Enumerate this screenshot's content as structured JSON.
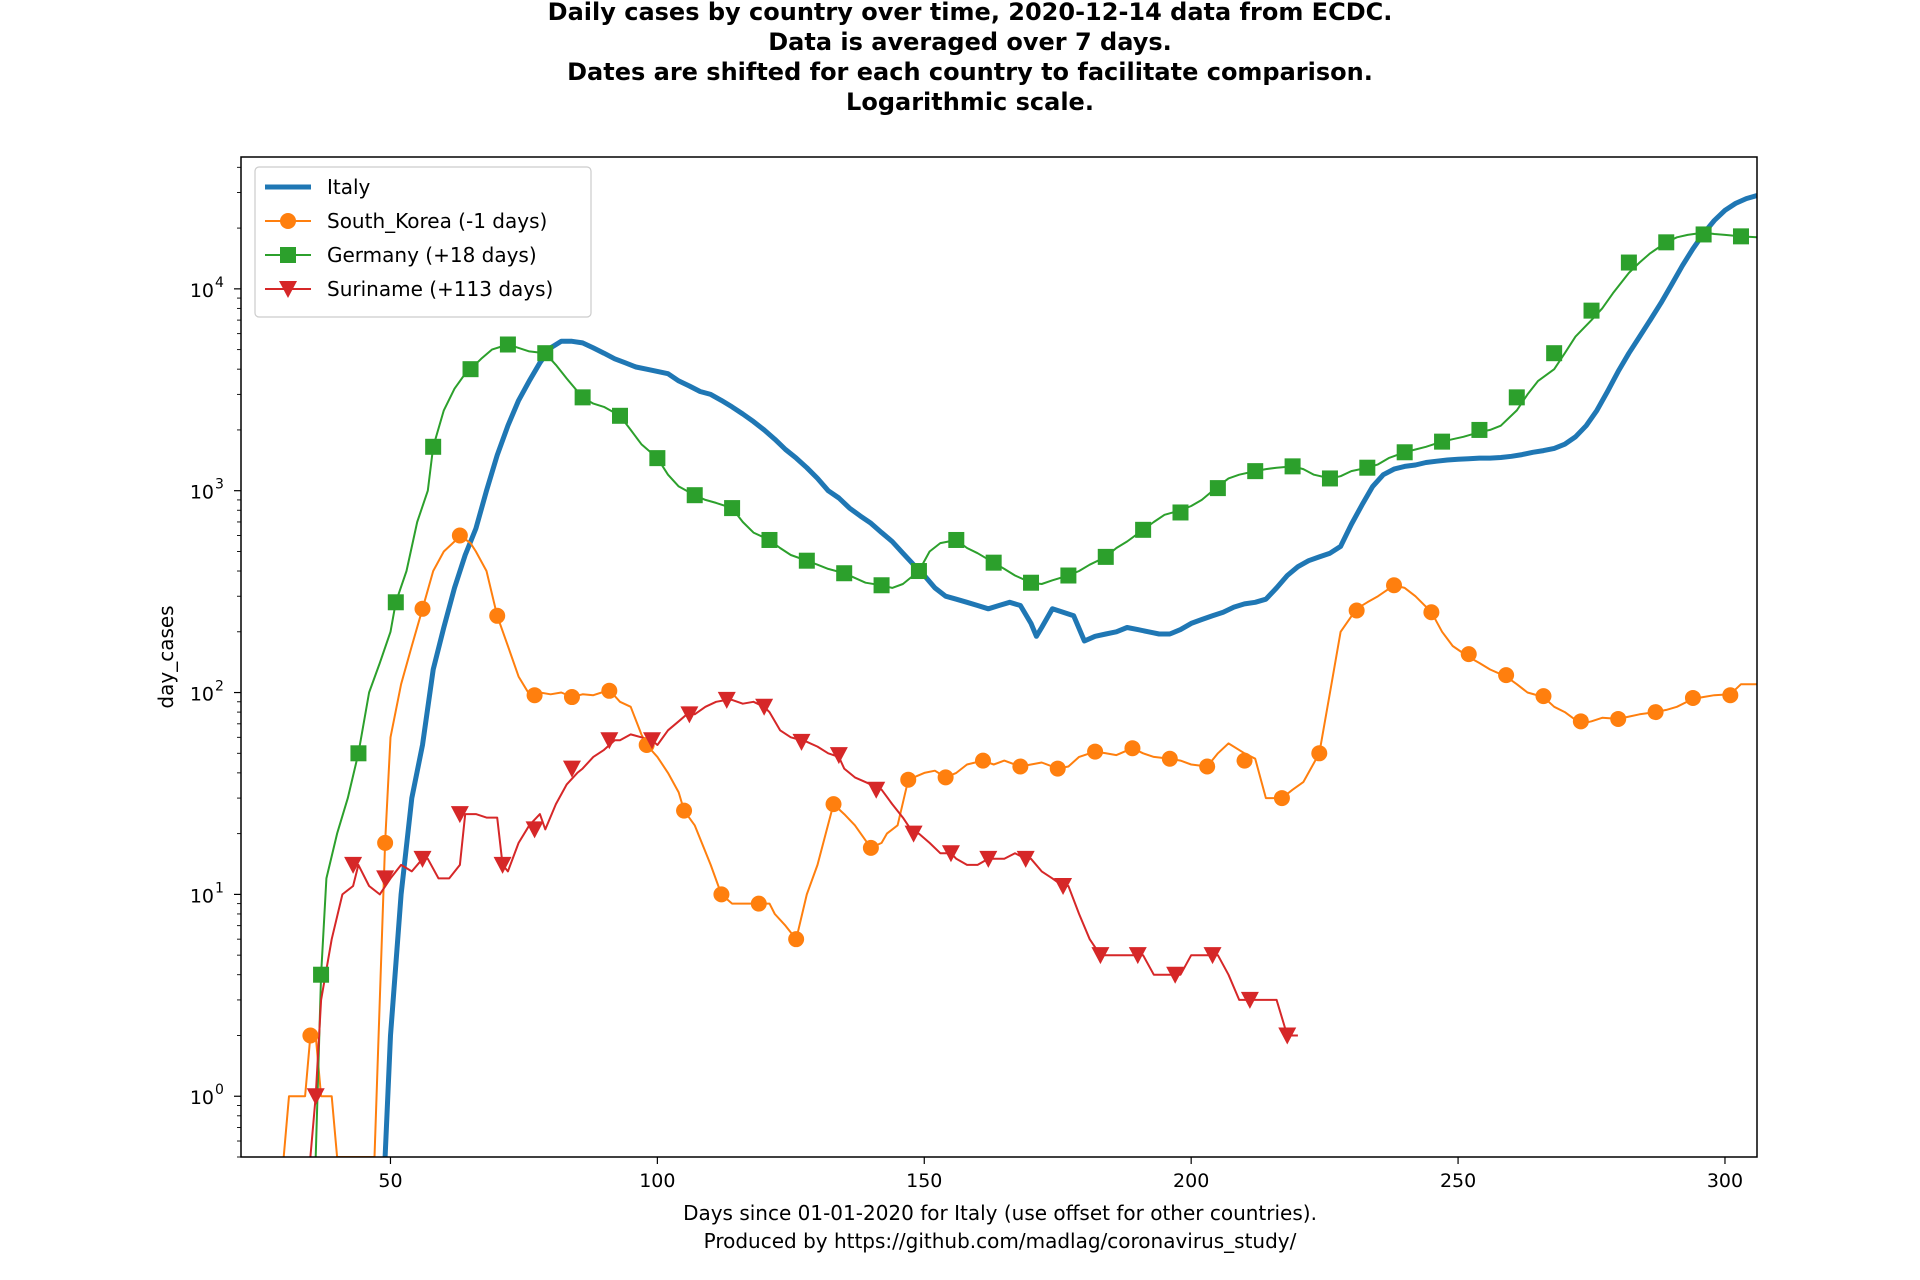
{
  "chart_data": {
    "type": "line",
    "title_lines": [
      "Daily cases by country over time, 2020-12-14 data from ECDC.",
      "Data is averaged over 7 days.",
      "Dates are shifted for each country to facilitate comparison.",
      "Logarithmic scale."
    ],
    "xlabel": "Days since 01-01-2020 for Italy (use offset for other countries).",
    "xlabel2": "Produced by https://github.com/madlag/coronavirus_study/",
    "ylabel": "day_cases",
    "xlim": [
      22,
      306
    ],
    "ylim": [
      0.5,
      45000
    ],
    "yscale": "log",
    "x_ticks": [
      50,
      100,
      150,
      200,
      250,
      300
    ],
    "y_ticks": [
      {
        "value": 1,
        "base": "10",
        "exp": "0"
      },
      {
        "value": 10,
        "base": "10",
        "exp": "1"
      },
      {
        "value": 100,
        "base": "10",
        "exp": "2"
      },
      {
        "value": 1000,
        "base": "10",
        "exp": "3"
      },
      {
        "value": 10000,
        "base": "10",
        "exp": "4"
      }
    ],
    "grid": false,
    "legend_position": "top-left",
    "series": [
      {
        "name": "Italy",
        "color": "#1f77b4",
        "marker": "none",
        "x": [
          49,
          50,
          52,
          54,
          56,
          58,
          60,
          62,
          64,
          66,
          68,
          70,
          72,
          74,
          76,
          78,
          80,
          82,
          84,
          86,
          88,
          90,
          92,
          94,
          96,
          98,
          100,
          102,
          104,
          106,
          108,
          110,
          112,
          114,
          116,
          118,
          120,
          122,
          124,
          126,
          128,
          130,
          132,
          134,
          136,
          138,
          140,
          142,
          144,
          146,
          148,
          150,
          152,
          154,
          156,
          158,
          160,
          162,
          164,
          166,
          168,
          170,
          171,
          172,
          174,
          176,
          178,
          180,
          182,
          184,
          186,
          188,
          190,
          192,
          194,
          196,
          198,
          200,
          202,
          204,
          206,
          208,
          210,
          212,
          214,
          216,
          218,
          220,
          222,
          224,
          226,
          228,
          230,
          232,
          234,
          236,
          238,
          240,
          242,
          244,
          246,
          248,
          250,
          252,
          254,
          256,
          258,
          260,
          262,
          264,
          266,
          268,
          270,
          272,
          274,
          276,
          278,
          280,
          282,
          284,
          286,
          288,
          290,
          292,
          294,
          296,
          298,
          300,
          302,
          304,
          306
        ],
        "y": [
          0.5,
          2,
          10,
          30,
          55,
          130,
          210,
          330,
          480,
          650,
          1000,
          1500,
          2100,
          2800,
          3500,
          4300,
          5100,
          5500,
          5500,
          5400,
          5100,
          4800,
          4500,
          4300,
          4100,
          4000,
          3900,
          3800,
          3500,
          3300,
          3100,
          3000,
          2800,
          2600,
          2400,
          2200,
          2000,
          1800,
          1600,
          1450,
          1300,
          1150,
          1000,
          920,
          820,
          750,
          690,
          620,
          560,
          490,
          430,
          380,
          330,
          300,
          290,
          280,
          270,
          260,
          270,
          280,
          270,
          220,
          190,
          210,
          260,
          250,
          240,
          180,
          190,
          195,
          200,
          210,
          205,
          200,
          195,
          195,
          205,
          220,
          230,
          240,
          250,
          265,
          275,
          280,
          290,
          330,
          380,
          420,
          450,
          470,
          490,
          530,
          680,
          850,
          1050,
          1200,
          1280,
          1320,
          1340,
          1380,
          1400,
          1420,
          1430,
          1440,
          1450,
          1450,
          1460,
          1480,
          1510,
          1550,
          1580,
          1620,
          1700,
          1850,
          2100,
          2500,
          3100,
          3900,
          4800,
          5800,
          7000,
          8500,
          10500,
          13000,
          15800,
          18800,
          21800,
          24500,
          26500,
          28000,
          29000
        ]
      },
      {
        "name": "South_Korea (-1 days)",
        "color": "#ff7f0e",
        "marker": "circle",
        "x": [
          30,
          31,
          33,
          34,
          35,
          36,
          37,
          39,
          40,
          47,
          48,
          49,
          50,
          52,
          54,
          56,
          58,
          60,
          62,
          63,
          65,
          66,
          68,
          70,
          72,
          74,
          76,
          78,
          80,
          82,
          84,
          86,
          88,
          91,
          93,
          95,
          97,
          98,
          100,
          102,
          104,
          105,
          107,
          110,
          112,
          114,
          116,
          118,
          119,
          121,
          122,
          124,
          126,
          128,
          130,
          133,
          135,
          137,
          140,
          142,
          143,
          145,
          147,
          150,
          152,
          154,
          156,
          158,
          161,
          163,
          165,
          168,
          170,
          172,
          175,
          177,
          179,
          182,
          184,
          186,
          189,
          191,
          193,
          196,
          198,
          200,
          203,
          205,
          207,
          210,
          212,
          214,
          217,
          219,
          221,
          224,
          226,
          228,
          231,
          233,
          235,
          238,
          240,
          242,
          245,
          247,
          249,
          252,
          254,
          256,
          259,
          261,
          263,
          266,
          268,
          270,
          273,
          275,
          277,
          280,
          282,
          284,
          287,
          289,
          291,
          294,
          296,
          298,
          301,
          303,
          306
        ],
        "y": [
          0.5,
          1,
          1,
          1,
          2,
          2,
          1,
          1,
          0.5,
          0.5,
          3,
          18,
          60,
          110,
          170,
          260,
          400,
          500,
          560,
          600,
          550,
          500,
          400,
          240,
          170,
          120,
          98,
          100,
          98,
          100,
          95,
          98,
          97,
          103,
          90,
          85,
          62,
          55,
          48,
          40,
          32,
          26,
          22,
          14,
          10,
          9,
          9,
          9,
          9,
          9,
          8,
          7,
          6,
          10,
          14,
          28,
          25,
          22,
          17,
          18,
          20,
          22,
          37,
          40,
          41,
          38,
          40,
          44,
          46,
          44,
          46,
          43,
          44,
          45,
          42,
          43,
          48,
          51,
          50,
          49,
          53,
          50,
          48,
          47,
          46,
          44,
          43,
          50,
          56,
          50,
          47,
          30,
          30,
          33,
          36,
          50,
          100,
          200,
          260,
          280,
          300,
          340,
          330,
          300,
          250,
          200,
          170,
          150,
          140,
          130,
          120,
          110,
          100,
          95,
          85,
          80,
          70,
          72,
          75,
          74,
          76,
          78,
          80,
          82,
          85,
          93,
          95,
          97,
          98,
          110,
          110
        ]
      },
      {
        "name": "Germany (+18 days)",
        "color": "#2ca02c",
        "marker": "square",
        "x": [
          36,
          37,
          38,
          40,
          42,
          44,
          46,
          48,
          50,
          51,
          53,
          55,
          57,
          58,
          60,
          62,
          64,
          65,
          67,
          69,
          72,
          74,
          76,
          79,
          81,
          83,
          86,
          88,
          90,
          93,
          95,
          97,
          100,
          102,
          104,
          107,
          109,
          111,
          114,
          116,
          118,
          121,
          123,
          125,
          128,
          130,
          132,
          135,
          137,
          139,
          142,
          144,
          146,
          149,
          151,
          153,
          156,
          158,
          160,
          163,
          165,
          167,
          170,
          172,
          174,
          177,
          179,
          181,
          184,
          186,
          188,
          191,
          193,
          195,
          198,
          200,
          202,
          205,
          207,
          209,
          212,
          214,
          216,
          219,
          221,
          223,
          226,
          228,
          230,
          233,
          235,
          237,
          240,
          242,
          244,
          247,
          249,
          251,
          254,
          256,
          258,
          261,
          263,
          265,
          268,
          270,
          272,
          275,
          277,
          279,
          282,
          284,
          286,
          289,
          291,
          293,
          296,
          298,
          300,
          303,
          306
        ],
        "y": [
          0.5,
          4,
          12,
          20,
          30,
          50,
          100,
          140,
          200,
          280,
          400,
          700,
          1000,
          1650,
          2500,
          3200,
          3800,
          4000,
          4500,
          5000,
          5300,
          5100,
          4900,
          4800,
          4200,
          3600,
          2900,
          2700,
          2600,
          2350,
          2000,
          1700,
          1450,
          1200,
          1050,
          950,
          900,
          870,
          820,
          700,
          620,
          570,
          520,
          480,
          450,
          430,
          410,
          390,
          370,
          350,
          340,
          330,
          345,
          400,
          500,
          550,
          570,
          520,
          490,
          440,
          410,
          380,
          350,
          345,
          360,
          380,
          400,
          430,
          470,
          520,
          560,
          640,
          700,
          760,
          800,
          840,
          900,
          1050,
          1150,
          1200,
          1250,
          1280,
          1300,
          1320,
          1280,
          1200,
          1150,
          1180,
          1250,
          1300,
          1350,
          1450,
          1550,
          1600,
          1650,
          1750,
          1800,
          1850,
          1950,
          2000,
          2100,
          2500,
          3000,
          3500,
          4000,
          4800,
          5800,
          7000,
          8000,
          9500,
          12000,
          13500,
          15000,
          17000,
          18000,
          18500,
          19000,
          18700,
          18500,
          18200,
          18000
        ]
      },
      {
        "name": "Suriname (+113 days)",
        "color": "#d62728",
        "marker": "triangle_down",
        "x": [
          35,
          36,
          37,
          39,
          41,
          43,
          44,
          46,
          48,
          50,
          52,
          54,
          56,
          57,
          59,
          61,
          63,
          64,
          66,
          68,
          70,
          71,
          72,
          74,
          76,
          78,
          79,
          81,
          83,
          85,
          86,
          88,
          90,
          92,
          93,
          95,
          97,
          99,
          100,
          102,
          104,
          106,
          107,
          109,
          111,
          113,
          114,
          116,
          118,
          120,
          121,
          123,
          125,
          127,
          128,
          130,
          132,
          134,
          135,
          137,
          139,
          141,
          142,
          144,
          146,
          148,
          149,
          151,
          153,
          155,
          156,
          158,
          160,
          162,
          163,
          165,
          167,
          169,
          170,
          172,
          174,
          176,
          177,
          179,
          181,
          183,
          184,
          186,
          188,
          190,
          191,
          193,
          195,
          197,
          198,
          200,
          202,
          204,
          205,
          207,
          209,
          211,
          212,
          214,
          216,
          218,
          220
        ],
        "y": [
          0.5,
          1,
          3,
          6,
          10,
          11,
          14,
          11,
          10,
          12,
          14,
          13,
          15,
          15,
          12,
          12,
          14,
          25,
          25,
          24,
          24,
          14,
          13,
          18,
          22,
          25,
          21,
          28,
          35,
          40,
          42,
          48,
          52,
          58,
          58,
          62,
          60,
          58,
          55,
          65,
          72,
          80,
          78,
          85,
          90,
          92,
          92,
          88,
          90,
          85,
          80,
          65,
          60,
          58,
          57,
          54,
          50,
          48,
          42,
          38,
          36,
          34,
          33,
          28,
          24,
          20,
          20,
          18,
          16,
          16,
          15,
          14,
          14,
          15,
          15,
          15,
          16,
          15,
          15,
          13,
          12,
          11,
          11,
          8,
          6,
          5,
          5,
          5,
          5,
          5,
          5,
          4,
          4,
          4,
          4,
          5,
          5,
          5,
          5,
          4,
          3,
          3,
          3,
          3,
          3,
          2,
          2
        ],
        "marker_x": [
          36,
          43,
          49,
          56,
          63,
          71,
          77,
          84,
          91,
          99,
          106,
          113,
          120,
          127,
          134,
          141,
          148,
          155,
          162,
          169,
          176,
          183,
          190,
          197,
          204,
          211,
          218
        ],
        "marker_y": [
          1,
          14,
          12,
          15,
          25,
          14,
          21,
          42,
          58,
          58,
          78,
          92,
          85,
          57,
          49,
          33,
          20,
          16,
          15,
          15,
          11,
          5,
          5,
          4,
          5,
          3,
          2
        ]
      }
    ],
    "markers": {
      "South_Korea (-1 days)": {
        "x": [
          35,
          49,
          56,
          63,
          70,
          77,
          84,
          91,
          98,
          105,
          112,
          119,
          126,
          133,
          140,
          147,
          154,
          161,
          168,
          175,
          182,
          189,
          196,
          203,
          210,
          217,
          224,
          231,
          238,
          245,
          252,
          259,
          266,
          273,
          280,
          287,
          294,
          301
        ],
        "y": [
          2,
          18,
          260,
          600,
          240,
          97,
          95,
          102,
          55,
          26,
          10,
          9,
          6,
          28,
          17,
          37,
          38,
          46,
          43,
          42,
          51,
          53,
          47,
          43,
          46,
          30,
          50,
          255,
          340,
          250,
          155,
          122,
          96,
          72,
          74,
          80,
          94,
          97
        ]
      },
      "Germany (+18 days)": {
        "x": [
          37,
          44,
          51,
          58,
          65,
          72,
          79,
          86,
          93,
          100,
          107,
          114,
          121,
          128,
          135,
          142,
          149,
          156,
          163,
          170,
          177,
          184,
          191,
          198,
          205,
          212,
          219,
          226,
          233,
          240,
          247,
          254,
          261,
          268,
          275,
          282,
          289,
          296,
          303
        ],
        "y": [
          4,
          50,
          280,
          1650,
          4000,
          5300,
          4800,
          2900,
          2350,
          1450,
          950,
          820,
          570,
          450,
          390,
          340,
          400,
          570,
          440,
          350,
          380,
          470,
          640,
          780,
          1030,
          1250,
          1320,
          1150,
          1300,
          1550,
          1750,
          2000,
          2900,
          4800,
          7800,
          13500,
          17000,
          18600,
          18200
        ]
      }
    }
  }
}
